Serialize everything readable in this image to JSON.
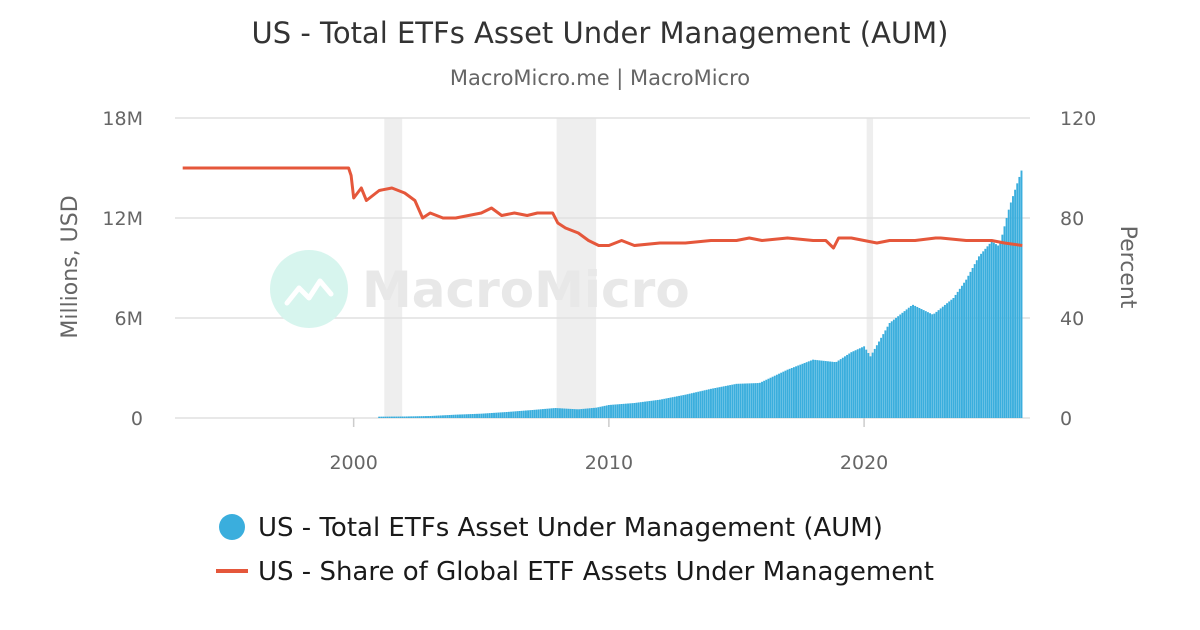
{
  "chart_data": {
    "type": "bar",
    "title": "US - Total ETFs Asset Under Management (AUM)",
    "subtitle": "MacroMicro.me | MacroMicro",
    "watermark": "MacroMicro",
    "y_left": {
      "label": "Millions, USD",
      "range": [
        0,
        18000000
      ],
      "ticks": [
        "0",
        "6M",
        "12M",
        "18M"
      ]
    },
    "y_right": {
      "label": "Percent",
      "range": [
        0,
        120
      ],
      "ticks": [
        "0",
        "40",
        "80",
        "120"
      ]
    },
    "x_axis": {
      "range": [
        1993.0,
        2026.5
      ],
      "ticks": [
        "2000",
        "2010",
        "2020"
      ]
    },
    "shaded_periods": [
      [
        2001.2,
        2001.9
      ],
      [
        2007.95,
        2009.5
      ],
      [
        2020.1,
        2020.35
      ]
    ],
    "legend_position": "bottom",
    "colors": {
      "aum": "#3aaedd",
      "share": "#e5573b",
      "recession": "#eeeeee",
      "grid": "#e0e0e0",
      "watermark_logo": "#d7f5ee"
    },
    "series": [
      {
        "name": "US - Total ETFs Asset Under Management (AUM)",
        "type": "bar",
        "axis": "left",
        "points": [
          [
            2001.0,
            80000
          ],
          [
            2002.0,
            90000
          ],
          [
            2003.0,
            120000
          ],
          [
            2004.0,
            200000
          ],
          [
            2005.0,
            260000
          ],
          [
            2006.0,
            360000
          ],
          [
            2007.0,
            480000
          ],
          [
            2007.9,
            600000
          ],
          [
            2008.8,
            520000
          ],
          [
            2009.5,
            620000
          ],
          [
            2010.0,
            780000
          ],
          [
            2011.0,
            900000
          ],
          [
            2012.0,
            1100000
          ],
          [
            2013.0,
            1400000
          ],
          [
            2014.0,
            1750000
          ],
          [
            2015.0,
            2050000
          ],
          [
            2015.9,
            2100000
          ],
          [
            2017.0,
            2900000
          ],
          [
            2018.0,
            3500000
          ],
          [
            2018.9,
            3350000
          ],
          [
            2019.5,
            3950000
          ],
          [
            2020.0,
            4300000
          ],
          [
            2020.25,
            3700000
          ],
          [
            2021.0,
            5700000
          ],
          [
            2021.9,
            6800000
          ],
          [
            2022.7,
            6200000
          ],
          [
            2023.5,
            7200000
          ],
          [
            2024.0,
            8300000
          ],
          [
            2024.5,
            9700000
          ],
          [
            2025.0,
            10600000
          ],
          [
            2025.3,
            10300000
          ],
          [
            2025.7,
            12700000
          ],
          [
            2026.2,
            15000000
          ]
        ]
      },
      {
        "name": "US - Share of Global ETF Assets Under Management",
        "type": "line",
        "axis": "right",
        "points": [
          [
            1993.3,
            100
          ],
          [
            1999.8,
            100
          ],
          [
            1999.9,
            97
          ],
          [
            2000.0,
            88
          ],
          [
            2000.3,
            92
          ],
          [
            2000.5,
            87
          ],
          [
            2001.0,
            91
          ],
          [
            2001.5,
            92
          ],
          [
            2002.0,
            90
          ],
          [
            2002.4,
            87
          ],
          [
            2002.7,
            80
          ],
          [
            2003.0,
            82
          ],
          [
            2003.5,
            80
          ],
          [
            2004.0,
            80
          ],
          [
            2004.5,
            81
          ],
          [
            2005.0,
            82
          ],
          [
            2005.4,
            84
          ],
          [
            2005.8,
            81
          ],
          [
            2006.3,
            82
          ],
          [
            2006.8,
            81
          ],
          [
            2007.2,
            82
          ],
          [
            2007.8,
            82
          ],
          [
            2008.0,
            78
          ],
          [
            2008.3,
            76
          ],
          [
            2008.8,
            74
          ],
          [
            2009.2,
            71
          ],
          [
            2009.6,
            69
          ],
          [
            2010.0,
            69
          ],
          [
            2010.5,
            71
          ],
          [
            2011.0,
            69
          ],
          [
            2012.0,
            70
          ],
          [
            2013.0,
            70
          ],
          [
            2014.0,
            71
          ],
          [
            2015.0,
            71
          ],
          [
            2015.5,
            72
          ],
          [
            2016.0,
            71
          ],
          [
            2017.0,
            72
          ],
          [
            2018.0,
            71
          ],
          [
            2018.5,
            71
          ],
          [
            2018.8,
            68
          ],
          [
            2019.0,
            72
          ],
          [
            2019.5,
            72
          ],
          [
            2020.0,
            71
          ],
          [
            2020.5,
            70
          ],
          [
            2021.0,
            71
          ],
          [
            2022.0,
            71
          ],
          [
            2022.8,
            72
          ],
          [
            2023.0,
            72
          ],
          [
            2024.0,
            71
          ],
          [
            2024.8,
            71
          ],
          [
            2025.0,
            71
          ],
          [
            2025.5,
            70
          ],
          [
            2026.2,
            69
          ]
        ]
      }
    ]
  }
}
